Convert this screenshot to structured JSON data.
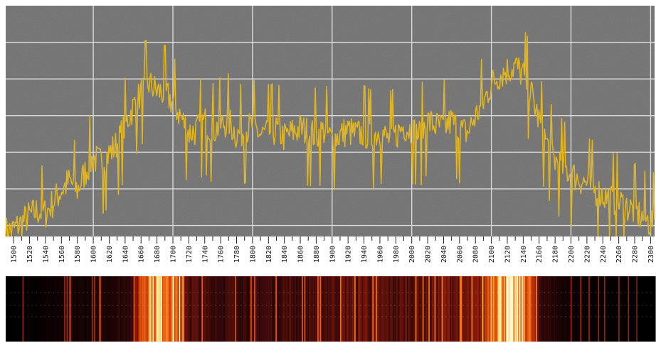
{
  "chart_data": {
    "type": "line",
    "title": "",
    "xlabel": "",
    "ylabel": "",
    "grid": true,
    "xlim": [
      1490,
      2305
    ],
    "ylim": [
      0,
      1
    ],
    "x_ticks": [
      "1500",
      "1520",
      "1540",
      "1560",
      "1580",
      "1600",
      "1620",
      "1640",
      "1660",
      "1680",
      "1700",
      "1720",
      "1740",
      "1760",
      "1780",
      "1800",
      "1820",
      "1840",
      "1860",
      "1880",
      "1900",
      "1920",
      "1940",
      "1960",
      "1980",
      "2000",
      "2020",
      "2040",
      "2060",
      "2080",
      "2100",
      "2120",
      "2140",
      "2160",
      "2180",
      "2200",
      "2220",
      "2240",
      "2260",
      "2280",
      "2300"
    ],
    "series": [
      {
        "color": "#e0b521",
        "x": [
          1490,
          1500,
          1510,
          1520,
          1530,
          1540,
          1550,
          1560,
          1570,
          1580,
          1590,
          1600,
          1610,
          1620,
          1630,
          1640,
          1650,
          1660,
          1670,
          1680,
          1690,
          1700,
          1710,
          1720,
          1730,
          1740,
          1750,
          1760,
          1770,
          1780,
          1790,
          1800,
          1810,
          1820,
          1830,
          1840,
          1850,
          1860,
          1870,
          1880,
          1890,
          1900,
          1910,
          1920,
          1930,
          1940,
          1950,
          1960,
          1970,
          1980,
          1990,
          2000,
          2010,
          2020,
          2030,
          2040,
          2050,
          2060,
          2070,
          2080,
          2090,
          2100,
          2110,
          2120,
          2130,
          2140,
          2150,
          2160,
          2170,
          2180,
          2190,
          2200,
          2210,
          2220,
          2230,
          2240,
          2250,
          2260,
          2270,
          2280,
          2290,
          2300,
          2305
        ],
        "values": [
          0.02,
          0.03,
          0.06,
          0.09,
          0.11,
          0.1,
          0.15,
          0.2,
          0.24,
          0.2,
          0.28,
          0.34,
          0.32,
          0.36,
          0.4,
          0.48,
          0.56,
          0.62,
          0.66,
          0.63,
          0.62,
          0.58,
          0.52,
          0.45,
          0.46,
          0.5,
          0.46,
          0.48,
          0.5,
          0.44,
          0.46,
          0.48,
          0.44,
          0.45,
          0.46,
          0.43,
          0.45,
          0.47,
          0.45,
          0.44,
          0.46,
          0.42,
          0.44,
          0.46,
          0.44,
          0.45,
          0.43,
          0.46,
          0.42,
          0.44,
          0.48,
          0.46,
          0.44,
          0.5,
          0.48,
          0.47,
          0.5,
          0.46,
          0.45,
          0.52,
          0.58,
          0.66,
          0.7,
          0.72,
          0.74,
          0.7,
          0.62,
          0.5,
          0.4,
          0.33,
          0.3,
          0.27,
          0.25,
          0.23,
          0.2,
          0.18,
          0.16,
          0.15,
          0.13,
          0.11,
          0.08,
          0.06,
          0.07
        ]
      }
    ],
    "spectrogram": {
      "colormap": [
        "#000000",
        "#3a0a0a",
        "#8a1a0a",
        "#d23a0a",
        "#f47d1a",
        "#ffd15a",
        "#fff7d0"
      ],
      "intensity_x": [
        1490,
        1520,
        1560,
        1600,
        1630,
        1650,
        1660,
        1670,
        1680,
        1690,
        1700,
        1710,
        1720,
        1740,
        1760,
        1780,
        1800,
        1820,
        1840,
        1860,
        1880,
        1900,
        1920,
        1940,
        1960,
        1980,
        2000,
        2020,
        2040,
        2060,
        2080,
        2090,
        2100,
        2110,
        2120,
        2130,
        2140,
        2150,
        2160,
        2180,
        2200,
        2240,
        2300
      ],
      "intensity": [
        0.0,
        0.02,
        0.05,
        0.08,
        0.12,
        0.2,
        0.7,
        0.9,
        0.95,
        0.9,
        0.85,
        0.5,
        0.25,
        0.22,
        0.18,
        0.22,
        0.2,
        0.2,
        0.22,
        0.2,
        0.24,
        0.26,
        0.28,
        0.32,
        0.26,
        0.24,
        0.28,
        0.3,
        0.34,
        0.3,
        0.32,
        0.45,
        0.9,
        0.96,
        1.0,
        0.95,
        0.88,
        0.55,
        0.2,
        0.1,
        0.05,
        0.02,
        0.0
      ]
    }
  }
}
